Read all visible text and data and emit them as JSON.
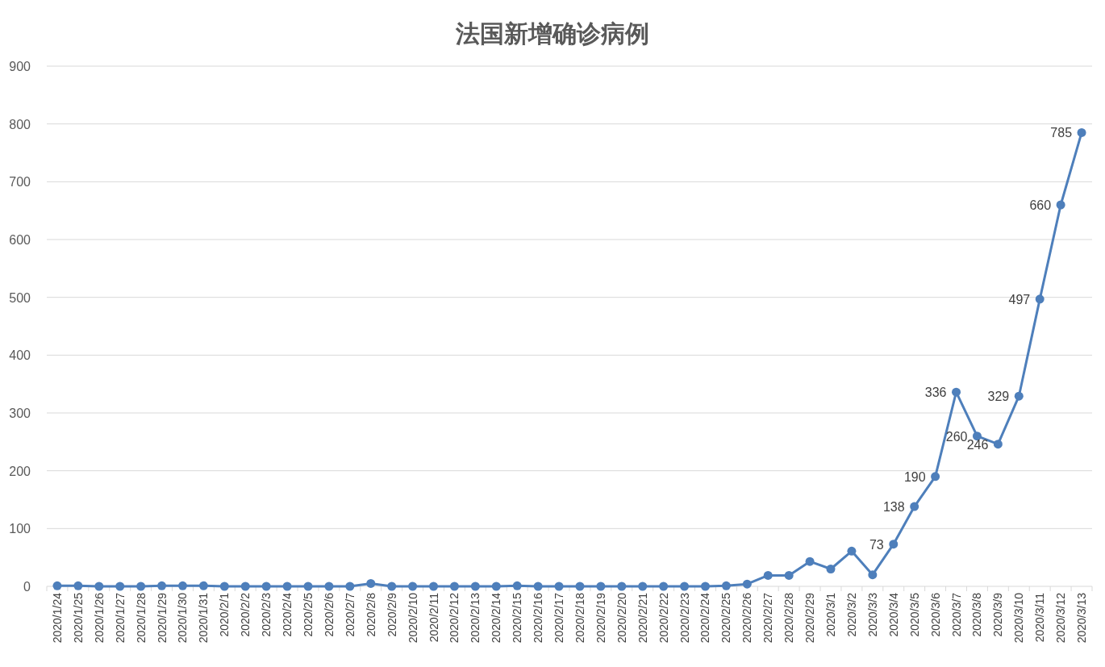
{
  "chart_data": {
    "type": "line",
    "title": "法国新增确诊病例",
    "categories": [
      "2020/1/24",
      "2020/1/25",
      "2020/1/26",
      "2020/1/27",
      "2020/1/28",
      "2020/1/29",
      "2020/1/30",
      "2020/1/31",
      "2020/2/1",
      "2020/2/2",
      "2020/2/3",
      "2020/2/4",
      "2020/2/5",
      "2020/2/6",
      "2020/2/7",
      "2020/2/8",
      "2020/2/9",
      "2020/2/10",
      "2020/2/11",
      "2020/2/12",
      "2020/2/13",
      "2020/2/14",
      "2020/2/15",
      "2020/2/16",
      "2020/2/17",
      "2020/2/18",
      "2020/2/19",
      "2020/2/20",
      "2020/2/21",
      "2020/2/22",
      "2020/2/23",
      "2020/2/24",
      "2020/2/25",
      "2020/2/26",
      "2020/2/27",
      "2020/2/28",
      "2020/2/29",
      "2020/3/1",
      "2020/3/2",
      "2020/3/3",
      "2020/3/4",
      "2020/3/5",
      "2020/3/6",
      "2020/3/7",
      "2020/3/8",
      "2020/3/9",
      "2020/3/10",
      "2020/3/11",
      "2020/3/12",
      "2020/3/13"
    ],
    "series": [
      {
        "color": "#4e7fbb",
        "values": [
          1,
          1,
          0,
          0,
          0,
          1,
          1,
          1,
          0,
          0,
          0,
          0,
          0,
          0,
          0,
          5,
          0,
          0,
          0,
          0,
          0,
          0,
          1,
          0,
          0,
          0,
          0,
          0,
          0,
          0,
          0,
          0,
          1,
          4,
          19,
          19,
          43,
          30,
          61,
          20,
          73,
          138,
          190,
          336,
          260,
          246,
          329,
          497,
          660,
          785
        ],
        "value_labels": [
          null,
          null,
          null,
          null,
          null,
          null,
          null,
          null,
          null,
          null,
          null,
          null,
          null,
          null,
          null,
          null,
          null,
          null,
          null,
          null,
          null,
          null,
          null,
          null,
          null,
          null,
          null,
          null,
          null,
          null,
          null,
          null,
          null,
          null,
          null,
          null,
          null,
          null,
          null,
          null,
          "73",
          "138",
          "190",
          "336",
          "260",
          "246",
          "329",
          "497",
          "660",
          "785"
        ]
      }
    ],
    "ylim": [
      0,
      900
    ],
    "yticks": [
      0,
      100,
      200,
      300,
      400,
      500,
      600,
      700,
      800,
      900
    ],
    "grid": "y",
    "marker": "circle",
    "line_style": "solid"
  }
}
